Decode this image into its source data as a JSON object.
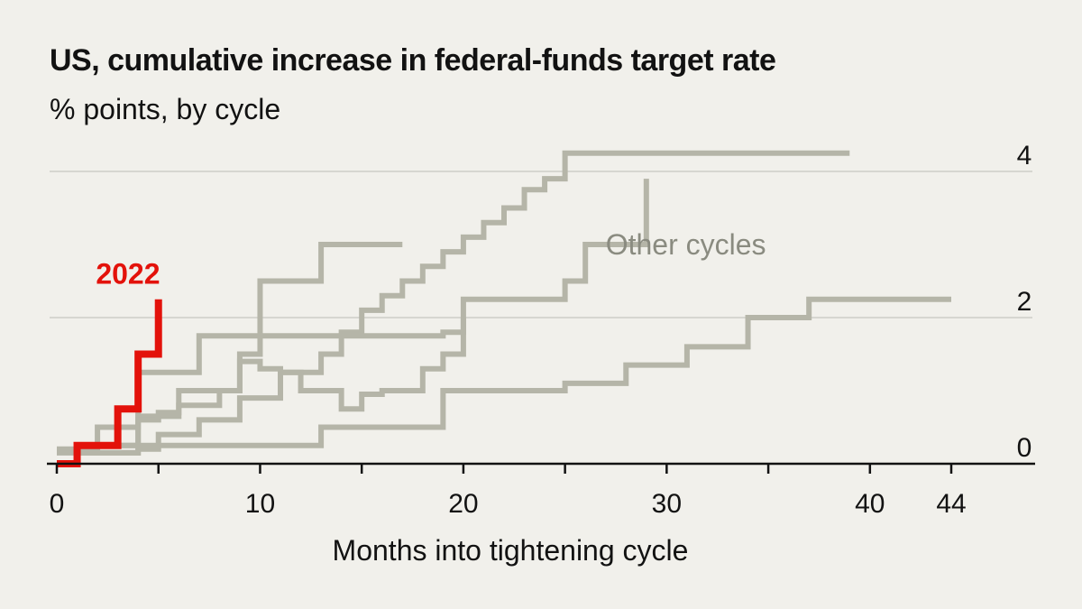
{
  "chart_data": {
    "type": "line",
    "step": true,
    "title": "US, cumulative increase in federal-funds target rate",
    "subtitle": "% points, by cycle",
    "xlabel": "Months into tightening cycle",
    "ylabel": "% points",
    "xlim": [
      0,
      44
    ],
    "ylim": [
      0,
      4
    ],
    "x_ticks": [
      0,
      5,
      10,
      15,
      20,
      25,
      30,
      35,
      40,
      44
    ],
    "x_tick_labels": [
      "0",
      "",
      "10",
      "",
      "20",
      "",
      "30",
      "",
      "40",
      "44"
    ],
    "y_ticks": [
      0,
      2,
      4
    ],
    "y_tick_labels": [
      "0",
      "2",
      "4"
    ],
    "grid": true,
    "colors": {
      "highlight": "#e3120b",
      "other": "#b5b5a8",
      "grid": "#d6d6d0",
      "axis": "#121212"
    },
    "series": [
      {
        "name": "2022",
        "highlight": true,
        "label": "2022",
        "x": [
          0,
          1,
          3,
          4,
          5
        ],
        "y": [
          0,
          0.25,
          0.75,
          1.5,
          2.25
        ]
      },
      {
        "name": "Other cycles A",
        "highlight": false,
        "x": [
          0,
          4,
          5,
          7,
          9,
          11,
          13,
          14,
          15,
          16,
          17,
          18,
          19,
          20,
          21,
          22,
          23,
          24,
          25,
          39
        ],
        "y": [
          0.15,
          0.2,
          0.4,
          0.6,
          0.9,
          1.25,
          1.5,
          1.8,
          2.1,
          2.3,
          2.5,
          2.7,
          2.9,
          3.1,
          3.3,
          3.5,
          3.75,
          3.9,
          4.25,
          4.25
        ]
      },
      {
        "name": "Other cycles B",
        "highlight": false,
        "x": [
          0,
          2,
          4,
          6,
          8,
          9,
          10,
          13,
          17
        ],
        "y": [
          0.2,
          0.5,
          0.65,
          0.8,
          1.0,
          1.5,
          2.5,
          3.0,
          3.0
        ]
      },
      {
        "name": "Other cycles C",
        "highlight": false,
        "x": [
          1,
          4,
          7,
          19,
          20
        ],
        "y": [
          0.15,
          1.25,
          1.75,
          1.8,
          2.0
        ]
      },
      {
        "name": "Other cycles D",
        "highlight": false,
        "x": [
          2,
          4,
          5,
          6,
          9,
          10,
          11,
          12,
          14,
          15,
          16,
          18,
          19,
          20,
          25,
          26,
          29
        ],
        "y": [
          0.25,
          0.6,
          0.7,
          1.0,
          1.4,
          1.3,
          1.25,
          1.0,
          0.75,
          0.95,
          1.0,
          1.3,
          1.5,
          2.25,
          2.5,
          3.0,
          3.9
        ]
      },
      {
        "name": "Other cycles E",
        "highlight": false,
        "x": [
          3,
          13,
          19,
          25,
          28,
          31,
          34,
          37,
          44
        ],
        "y": [
          0.25,
          0.5,
          1.0,
          1.1,
          1.35,
          1.6,
          2.0,
          2.25,
          2.25
        ]
      }
    ],
    "annotations": [
      {
        "text": "Other cycles",
        "x": 27,
        "y": 3.0
      },
      {
        "text": "2022",
        "x": 3.5,
        "y": 2.5
      }
    ]
  }
}
